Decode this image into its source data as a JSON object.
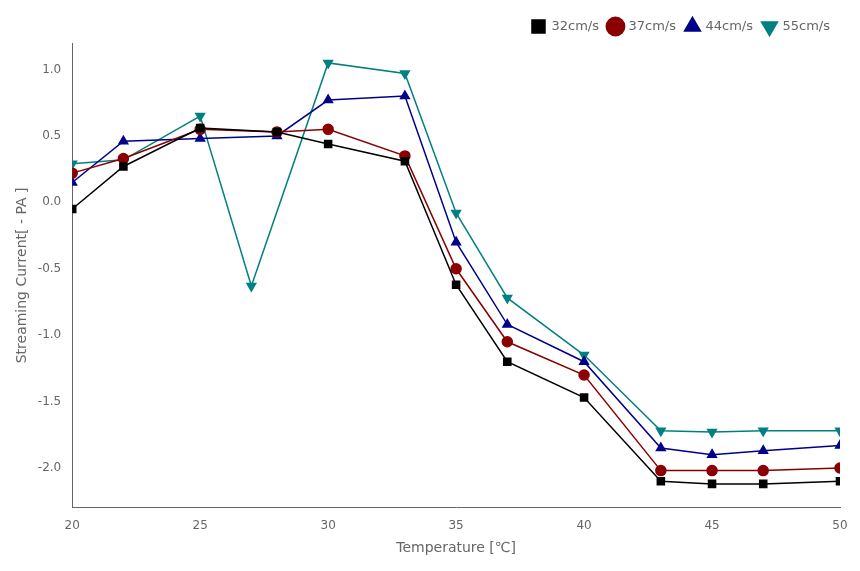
{
  "chart_data": {
    "type": "line",
    "xlabel": "Temperature [℃]",
    "ylabel": "Streaming Current[ - PA ]",
    "xlim": [
      20,
      50
    ],
    "ylim": [
      -2.3,
      1.2
    ],
    "xticks": [
      20,
      25,
      30,
      35,
      40,
      45,
      50
    ],
    "yticks": [
      {
        "value": -2.0,
        "label": "-2.0"
      },
      -1.5,
      {
        "value": -1.0,
        "label": "-1.0"
      },
      -0.5,
      {
        "value": 0.0,
        "label": "0.0"
      },
      0.5,
      {
        "value": 1.0,
        "label": "1.0"
      }
    ],
    "grid": false,
    "legend": "upper right",
    "series": [
      {
        "name": "32cm/s",
        "color": "#000000",
        "marker": "square",
        "x": [
          20,
          22,
          25,
          28,
          30,
          33,
          35,
          37,
          40,
          43,
          45,
          47,
          50
        ],
        "values": [
          -0.05,
          0.27,
          0.56,
          0.53,
          0.44,
          0.31,
          -0.62,
          -1.2,
          -1.47,
          -2.1,
          -2.12,
          -2.12,
          -2.1
        ]
      },
      {
        "name": "37cm/s",
        "color": "#8B0000",
        "marker": "circle",
        "x": [
          20,
          22,
          25,
          28,
          30,
          33,
          35,
          37,
          40,
          43,
          45,
          47,
          50
        ],
        "values": [
          0.22,
          0.33,
          0.55,
          0.53,
          0.55,
          0.35,
          -0.5,
          -1.05,
          -1.3,
          -2.02,
          -2.02,
          -2.02,
          -2.0
        ]
      },
      {
        "name": "44cm/s",
        "color": "#00008B",
        "marker": "triangle-up",
        "x": [
          20,
          22,
          25,
          28,
          30,
          33,
          35,
          37,
          40,
          43,
          45,
          47,
          50
        ],
        "values": [
          0.15,
          0.46,
          0.48,
          0.5,
          0.77,
          0.8,
          -0.3,
          -0.92,
          -1.2,
          -1.85,
          -1.9,
          -1.87,
          -1.83
        ]
      },
      {
        "name": "55cm/s",
        "color": "#008080",
        "marker": "triangle-down",
        "x": [
          20,
          22,
          25,
          27,
          30,
          33,
          35,
          37,
          40,
          43,
          45,
          47,
          50
        ],
        "values": [
          0.29,
          0.32,
          0.65,
          -0.63,
          1.05,
          0.97,
          -0.08,
          -0.72,
          -1.15,
          -1.72,
          -1.73,
          -1.72,
          -1.72
        ]
      }
    ]
  }
}
